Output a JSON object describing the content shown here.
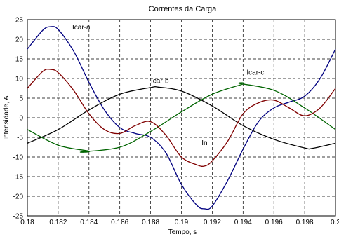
{
  "chart_data": {
    "type": "line",
    "title": "Correntes da Carga",
    "xlabel": "Tempo, s",
    "ylabel": "Intensidade, A",
    "xlim": [
      0.18,
      0.2
    ],
    "ylim": [
      -25,
      25
    ],
    "xticks": [
      0.18,
      0.182,
      0.184,
      0.186,
      0.188,
      0.19,
      0.192,
      0.194,
      0.196,
      0.198,
      0.2
    ],
    "xtick_labels": [
      "0.18",
      "0.182",
      "0.184",
      "0.186",
      "0.188",
      "0.19",
      "0.192",
      "0.194",
      "0.196",
      "0.198",
      "0.2"
    ],
    "yticks": [
      -25,
      -20,
      -15,
      -10,
      -5,
      0,
      5,
      10,
      15,
      20,
      25
    ],
    "ytick_labels": [
      "-25",
      "-20",
      "-15",
      "-10",
      "-5",
      "0",
      "5",
      "10",
      "15",
      "20",
      "25"
    ],
    "grid": true,
    "grid_style": "dashed",
    "series": [
      {
        "name": "Icar-a",
        "color": "#000080",
        "label_at": [
          0.1835,
          22.5
        ],
        "x": [
          0.18,
          0.181,
          0.1815,
          0.182,
          0.183,
          0.184,
          0.185,
          0.186,
          0.187,
          0.188,
          0.189,
          0.19,
          0.191,
          0.1915,
          0.192,
          0.193,
          0.194,
          0.195,
          0.196,
          0.197,
          0.198,
          0.199,
          0.2
        ],
        "y": [
          17.5,
          22.3,
          23.2,
          22.5,
          17.0,
          9.0,
          2.0,
          -2.5,
          -4.0,
          -5.0,
          -9.0,
          -17.0,
          -22.3,
          -23.2,
          -22.5,
          -16.0,
          -8.0,
          -1.0,
          2.5,
          4.0,
          5.5,
          10.0,
          17.5
        ]
      },
      {
        "name": "Icar-b",
        "color": "#000000",
        "label_at": [
          0.1886,
          8.8
        ],
        "x": [
          0.18,
          0.182,
          0.184,
          0.186,
          0.188,
          0.1885,
          0.19,
          0.192,
          0.194,
          0.196,
          0.198,
          0.1985,
          0.2
        ],
        "y": [
          -6.5,
          -3.0,
          2.0,
          6.0,
          7.7,
          7.8,
          6.8,
          3.0,
          -2.0,
          -5.5,
          -7.7,
          -7.8,
          -6.5
        ]
      },
      {
        "name": "Icar-c",
        "color": "#006400",
        "label_at": [
          0.1948,
          11.0
        ],
        "x": [
          0.18,
          0.182,
          0.184,
          0.1835,
          0.186,
          0.188,
          0.19,
          0.192,
          0.194,
          0.1938,
          0.196,
          0.198,
          0.2
        ],
        "y": [
          -3.0,
          -7.0,
          -8.5,
          -8.7,
          -7.5,
          -3.5,
          1.5,
          6.0,
          8.6,
          8.7,
          7.0,
          2.5,
          -3.0
        ]
      },
      {
        "name": "In",
        "color": "#800000",
        "label_at": [
          0.1915,
          -7.0
        ],
        "x": [
          0.18,
          0.181,
          0.1815,
          0.182,
          0.183,
          0.184,
          0.185,
          0.186,
          0.187,
          0.188,
          0.189,
          0.19,
          0.191,
          0.1915,
          0.192,
          0.193,
          0.194,
          0.195,
          0.196,
          0.197,
          0.198,
          0.199,
          0.2
        ],
        "y": [
          7.5,
          11.8,
          12.3,
          11.5,
          7.0,
          1.0,
          -3.0,
          -4.0,
          -2.0,
          -1.0,
          -4.5,
          -10.0,
          -12.0,
          -12.3,
          -11.0,
          -6.0,
          1.0,
          3.8,
          4.5,
          2.5,
          0.5,
          2.5,
          7.5
        ]
      }
    ]
  }
}
